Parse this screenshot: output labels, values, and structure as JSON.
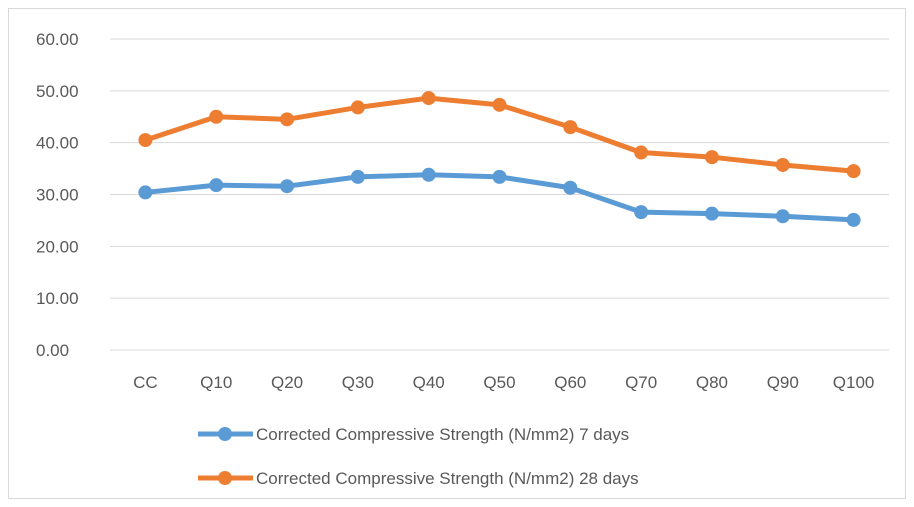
{
  "chart_data": {
    "type": "line",
    "categories": [
      "CC",
      "Q10",
      "Q20",
      "Q30",
      "Q40",
      "Q50",
      "Q60",
      "Q70",
      "Q80",
      "Q90",
      "Q100"
    ],
    "ylim": [
      0,
      60
    ],
    "ytick_labels": [
      "0.00",
      "10.00",
      "20.00",
      "30.00",
      "40.00",
      "50.00",
      "60.00"
    ],
    "grid": true,
    "legend_position": "bottom",
    "series": [
      {
        "name": "Corrected Compressive Strength (N/mm2) 7 days",
        "color": "#5b9bd5",
        "values": [
          30.4,
          31.8,
          31.6,
          33.4,
          33.8,
          33.4,
          31.3,
          26.6,
          26.3,
          25.8,
          25.1
        ]
      },
      {
        "name": "Corrected Compressive Strength (N/mm2) 28 days",
        "color": "#ed7d31",
        "values": [
          40.5,
          45.0,
          44.5,
          46.8,
          48.6,
          47.3,
          43.0,
          38.1,
          37.2,
          35.7,
          34.5
        ]
      }
    ]
  }
}
